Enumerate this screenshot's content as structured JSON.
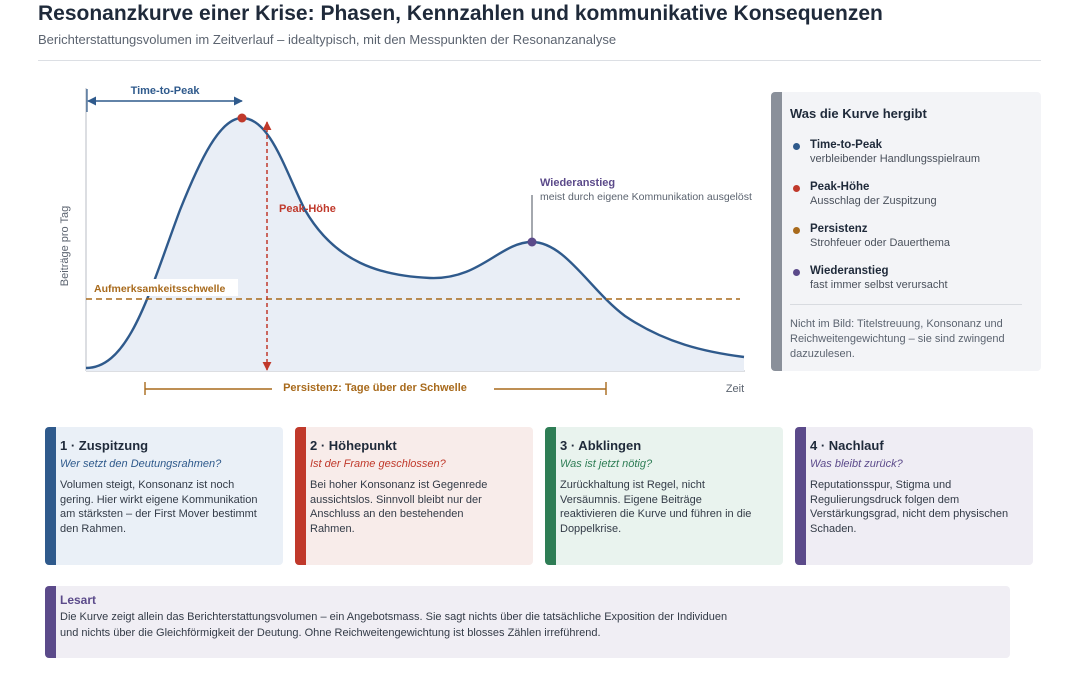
{
  "header": {
    "title": "Resonanzkurve einer Krise: Phasen, Kennzahlen und kommunikative Konsequenzen",
    "subtitle": "Berichterstattungsvolumen im Zeitverlauf – idealtypisch, mit den Messpunkten der Resonanzanalyse"
  },
  "chart": {
    "ylabel": "Beiträge pro Tag",
    "xlabel": "Zeit",
    "time_to_peak_label": "Time-to-Peak",
    "peak_label": "Peak-Höhe",
    "threshold_label": "Aufmerksamkeitsschwelle",
    "rebound_title": "Wiederanstieg",
    "rebound_sub": "meist durch eigene Kommunikation ausgelöst",
    "persistence_label": "Persistenz: Tage über der Schwelle"
  },
  "colors": {
    "blue": "#2f5a8c",
    "red": "#c0392b",
    "orange": "#a86a1c",
    "green": "#2e7d55",
    "purple": "#5b4a8a",
    "grey": "#8a909a"
  },
  "side": {
    "title": "Was die Kurve hergibt",
    "items": [
      {
        "name": "Time-to-Peak",
        "desc": "verbleibender Handlungsspielraum",
        "color": "#2f5a8c"
      },
      {
        "name": "Peak-Höhe",
        "desc": "Ausschlag der Zuspitzung",
        "color": "#c0392b"
      },
      {
        "name": "Persistenz",
        "desc": "Strohfeuer oder Dauerthema",
        "color": "#a86a1c"
      },
      {
        "name": "Wiederanstieg",
        "desc": "fast immer selbst verursacht",
        "color": "#5b4a8a"
      }
    ],
    "note": "Nicht im Bild: Titelstreuung, Konsonanz und Reichweitengewichtung – sie sind zwingend dazuzulesen."
  },
  "phases": [
    {
      "title": "1 · Zuspitzung",
      "question": "Wer setzt den Deutungsrahmen?",
      "body": "Volumen steigt, Konsonanz ist noch gering. Hier wirkt eigene Kommunikation am stärksten – der First Mover bestimmt den Rahmen.",
      "color": "#2f5a8c",
      "bg": "#eaf0f7"
    },
    {
      "title": "2 · Höhepunkt",
      "question": "Ist der Frame geschlossen?",
      "body": "Bei hoher Konsonanz ist Gegenrede aussichtslos. Sinnvoll bleibt nur der Anschluss an den bestehenden Rahmen.",
      "color": "#c0392b",
      "bg": "#f8ecea"
    },
    {
      "title": "3 · Abklingen",
      "question": "Was ist jetzt nötig?",
      "body": "Zurückhaltung ist Regel, nicht Versäumnis. Eigene Beiträge reaktivieren die Kurve und führen in die Doppelkrise.",
      "color": "#2e7d55",
      "bg": "#e9f3ee"
    },
    {
      "title": "4 · Nachlauf",
      "question": "Was bleibt zurück?",
      "body": "Reputationsspur, Stigma und Regulierungsdruck folgen dem Verstärkungsgrad, nicht dem physischen Schaden.",
      "color": "#5b4a8a",
      "bg": "#efedf4"
    }
  ],
  "lesart": {
    "title": "Lesart",
    "body": "Die Kurve zeigt allein das Berichterstattungsvolumen – ein Angebotsmass. Sie sagt nichts über die tatsächliche Exposition der Individuen und nichts über die Gleichförmigkeit der Deutung. Ohne Reichweitengewichtung ist blosses Zählen irreführend."
  }
}
